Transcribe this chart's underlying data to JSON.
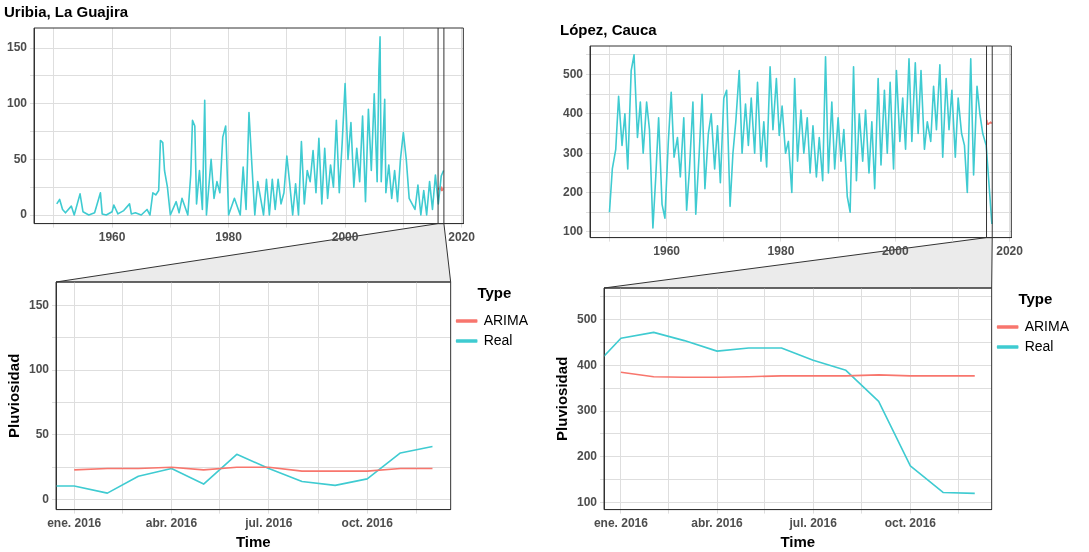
{
  "chart_data": [
    {
      "type": "line",
      "title": "Uribia, La Guajira",
      "xlim": [
        1946.6,
        2020.3
      ],
      "ylim": [
        -7.7,
        168
      ],
      "xticks": [
        {
          "value": 1950,
          "label": null
        },
        1960,
        {
          "value": 1970,
          "label": null
        },
        1980,
        {
          "value": 1990,
          "label": null
        },
        2000,
        {
          "value": 2010,
          "label": null
        },
        2020
      ],
      "yticks": [
        0,
        {
          "value": 25,
          "label": null
        },
        50,
        {
          "value": 75,
          "label": null
        },
        100,
        {
          "value": 125,
          "label": null
        },
        150
      ],
      "grid": true,
      "legend": false,
      "ref_lines": [
        {
          "axis": "x",
          "value": 2015.96,
          "color": "#333333"
        },
        {
          "axis": "x",
          "value": 2016.96,
          "color": "#333333"
        }
      ],
      "series": [
        {
          "color": "#3fcbd1",
          "x": [
            1950.5,
            1951,
            1951.5,
            1952,
            1953,
            1953.5,
            1954.5,
            1955,
            1956,
            1957,
            1958,
            1958.3,
            1959,
            1960,
            1960.3,
            1961,
            1962,
            1963,
            1963.3,
            1964,
            1965,
            1966,
            1966.5,
            1967,
            1967.5,
            1968,
            1968.3,
            1968.7,
            1969,
            1969.5,
            1970,
            1971,
            1971.5,
            1972,
            1973,
            1973.5,
            1973.8,
            1974.2,
            1974.5,
            1975,
            1975.5,
            1975.9,
            1976.2,
            1977,
            1977.5,
            1978,
            1978.5,
            1979,
            1979.5,
            1980,
            1981,
            1982,
            1982.5,
            1983,
            1983.5,
            1984,
            1984.5,
            1985,
            1986,
            1986.5,
            1987,
            1987.5,
            1988,
            1988.5,
            1989,
            1989.5,
            1990,
            1990.5,
            1991,
            1991.5,
            1992,
            1992.5,
            1993,
            1993.5,
            1994,
            1994.5,
            1995,
            1995.5,
            1996,
            1996.5,
            1997,
            1997.5,
            1998,
            1998.5,
            1999,
            1999.5,
            2000,
            2000.5,
            2001,
            2001.5,
            2002,
            2002.5,
            2003,
            2003.5,
            2004,
            2004.5,
            2005,
            2005.5,
            2005.8,
            2006,
            2006.2,
            2006.8,
            2007,
            2007.5,
            2008,
            2008.5,
            2009,
            2009.5,
            2010,
            2010.5,
            2011,
            2012,
            2012.5,
            2013,
            2013.5,
            2014,
            2014.5,
            2015,
            2015.5,
            2016,
            2016.5,
            2016.9
          ],
          "values": [
            10,
            14,
            5,
            2,
            8,
            0,
            19,
            3,
            0,
            2,
            20,
            1,
            0,
            3,
            9,
            1,
            4,
            10,
            1,
            2,
            0,
            5,
            0,
            20,
            18,
            22,
            67,
            65,
            40,
            25,
            0,
            12,
            2,
            15,
            0,
            36,
            85,
            80,
            10,
            40,
            5,
            103,
            0,
            50,
            15,
            30,
            20,
            70,
            80,
            0,
            15,
            0,
            43,
            5,
            92,
            45,
            0,
            30,
            0,
            32,
            0,
            32,
            5,
            32,
            10,
            20,
            53,
            28,
            0,
            28,
            0,
            66,
            10,
            40,
            30,
            58,
            20,
            69,
            10,
            60,
            15,
            45,
            25,
            85,
            20,
            65,
            118,
            50,
            83,
            25,
            60,
            30,
            89,
            12,
            95,
            40,
            109,
            30,
            130,
            160,
            30,
            104,
            20,
            45,
            15,
            40,
            12,
            50,
            74,
            50,
            15,
            5,
            27,
            0,
            22,
            0,
            30,
            5,
            36,
            10,
            35,
            40
          ]
        },
        {
          "color": "#f8766d",
          "x": [
            2016,
            2016.08,
            2016.17,
            2016.25,
            2016.33,
            2016.42,
            2016.5,
            2016.58,
            2016.67,
            2016.75,
            2016.83,
            2016.92
          ],
          "values": [
            23,
            24,
            24,
            25,
            23,
            25,
            25,
            22,
            22,
            22,
            24,
            24
          ]
        }
      ]
    },
    {
      "type": "line",
      "title": "López, Cauca",
      "xlim": [
        1946.6,
        2020.3
      ],
      "ylim": [
        85.5,
        572.6
      ],
      "xticks": [
        {
          "value": 1950,
          "label": null
        },
        1960,
        {
          "value": 1970,
          "label": null
        },
        1980,
        {
          "value": 1990,
          "label": null
        },
        2000,
        {
          "value": 2010,
          "label": null
        },
        2020
      ],
      "yticks": [
        100,
        {
          "value": 150,
          "label": null
        },
        200,
        {
          "value": 250,
          "label": null
        },
        300,
        {
          "value": 350,
          "label": null
        },
        400,
        {
          "value": 450,
          "label": null
        },
        500,
        {
          "value": 550,
          "label": null
        }
      ],
      "grid": true,
      "legend": false,
      "ref_lines": [
        {
          "axis": "x",
          "value": 2015.96,
          "color": "#333333"
        },
        {
          "axis": "x",
          "value": 2016.96,
          "color": "#333333"
        }
      ],
      "series": [
        {
          "color": "#3fcbd1",
          "x": [
            1950,
            1950.5,
            1951.1,
            1951.6,
            1952.2,
            1952.7,
            1953.2,
            1953.8,
            1954.3,
            1954.9,
            1955.4,
            1955.9,
            1956.5,
            1957,
            1957.6,
            1958.1,
            1958.6,
            1959.2,
            1959.7,
            1960.3,
            1960.8,
            1961.3,
            1961.9,
            1962.4,
            1963,
            1963.5,
            1964,
            1964.6,
            1965.1,
            1965.7,
            1966.2,
            1966.7,
            1967.3,
            1967.8,
            1968.4,
            1968.9,
            1969.4,
            1970,
            1970.5,
            1971.1,
            1971.6,
            1972.1,
            1972.7,
            1973.2,
            1973.8,
            1974.3,
            1974.8,
            1975.4,
            1975.9,
            1976.5,
            1977,
            1977.5,
            1978.1,
            1978.6,
            1979.2,
            1979.7,
            1980.2,
            1980.8,
            1981.3,
            1981.9,
            1982.4,
            1982.9,
            1983.5,
            1984,
            1984.6,
            1985.1,
            1985.6,
            1986.2,
            1986.7,
            1987.3,
            1987.8,
            1988.3,
            1988.9,
            1989.4,
            1990,
            1990.5,
            1991,
            1991.6,
            1992.1,
            1992.7,
            1993.2,
            1993.7,
            1994.3,
            1994.8,
            1995.4,
            1995.9,
            1996.4,
            1997,
            1997.5,
            1998.1,
            1998.6,
            1999.1,
            1999.7,
            2000.2,
            2000.8,
            2001.3,
            2001.8,
            2002.4,
            2002.9,
            2003.5,
            2004,
            2004.5,
            2005.1,
            2005.6,
            2006.2,
            2006.7,
            2007.2,
            2007.8,
            2008.3,
            2008.9,
            2009.4,
            2009.9,
            2010.5,
            2011,
            2011.6,
            2012.1,
            2012.6,
            2013.2,
            2013.7,
            2014.3,
            2014.8,
            2015.3,
            2015.9,
            2016.9
          ],
          "values": [
            150,
            260,
            310,
            445,
            320,
            400,
            260,
            510,
            550,
            340,
            430,
            300,
            430,
            360,
            110,
            240,
            390,
            170,
            135,
            330,
            455,
            290,
            340,
            240,
            390,
            155,
            260,
            430,
            145,
            300,
            450,
            210,
            350,
            400,
            260,
            370,
            225,
            440,
            460,
            165,
            300,
            380,
            510,
            300,
            425,
            320,
            440,
            300,
            480,
            280,
            380,
            265,
            520,
            360,
            490,
            345,
            420,
            300,
            330,
            200,
            490,
            280,
            410,
            300,
            390,
            250,
            370,
            240,
            340,
            230,
            545,
            250,
            430,
            260,
            390,
            280,
            360,
            190,
            150,
            520,
            230,
            400,
            280,
            410,
            250,
            380,
            210,
            490,
            270,
            460,
            300,
            480,
            260,
            510,
            330,
            440,
            310,
            540,
            330,
            530,
            350,
            510,
            310,
            380,
            330,
            470,
            360,
            525,
            290,
            490,
            360,
            460,
            290,
            440,
            350,
            320,
            200,
            540,
            245,
            470,
            400,
            350,
            320,
            120
          ]
        },
        {
          "color": "#f8766d",
          "x": [
            2016,
            2016.08,
            2016.17,
            2016.25,
            2016.33,
            2016.42,
            2016.5,
            2016.58,
            2016.67,
            2016.75,
            2016.83,
            2016.92
          ],
          "values": [
            385,
            375,
            374,
            374,
            375,
            377,
            377,
            377,
            379,
            377,
            377,
            377
          ]
        }
      ]
    },
    {
      "type": "line",
      "xlabel": "Time",
      "ylabel": "Pluviosidad",
      "legend_title": "Type",
      "legend": "right",
      "xlim": [
        "2015-12-15",
        "2016-12-18"
      ],
      "ylim": [
        -7.7,
        168
      ],
      "xticks": [
        {
          "value": "2016-01-01",
          "label": "ene. 2016"
        },
        {
          "value": "2016-02-15",
          "label": null
        },
        {
          "value": "2016-04-01",
          "label": "abr. 2016"
        },
        {
          "value": "2016-05-16",
          "label": null
        },
        {
          "value": "2016-07-01",
          "label": "jul. 2016"
        },
        {
          "value": "2016-08-16",
          "label": null
        },
        {
          "value": "2016-10-01",
          "label": "oct. 2016"
        },
        {
          "value": "2016-11-16",
          "label": null
        }
      ],
      "yticks": [
        0,
        {
          "value": 25,
          "label": null
        },
        50,
        {
          "value": 75,
          "label": null
        },
        100,
        {
          "value": 125,
          "label": null
        },
        150
      ],
      "grid": true,
      "series": [
        {
          "name": "ARIMA",
          "color": "#f8766d",
          "x": [
            "2016-01-01",
            "2016-02-01",
            "2016-03-01",
            "2016-04-01",
            "2016-05-01",
            "2016-06-01",
            "2016-07-01",
            "2016-08-01",
            "2016-09-01",
            "2016-10-01",
            "2016-11-01",
            "2016-12-01"
          ],
          "values": [
            23,
            24,
            24,
            25,
            23,
            25,
            25,
            22,
            22,
            22,
            24,
            24
          ]
        },
        {
          "name": "Real",
          "color": "#3fcbd1",
          "x": [
            "2015-12-15",
            "2016-01-01",
            "2016-02-01",
            "2016-03-01",
            "2016-04-01",
            "2016-05-01",
            "2016-06-01",
            "2016-07-01",
            "2016-08-01",
            "2016-09-01",
            "2016-10-01",
            "2016-11-01",
            "2016-12-01"
          ],
          "values": [
            10.5,
            10.5,
            5,
            18,
            24,
            12,
            35,
            24,
            14,
            11,
            16,
            36,
            41
          ]
        }
      ]
    },
    {
      "type": "line",
      "xlabel": "Time",
      "ylabel": "Pluviosidad",
      "legend_title": "Type",
      "legend": "right",
      "xlim": [
        "2015-12-16",
        "2016-12-17"
      ],
      "ylim": [
        84.6,
        569
      ],
      "xticks": [
        {
          "value": "2016-01-01",
          "label": "ene. 2016"
        },
        {
          "value": "2016-02-15",
          "label": null
        },
        {
          "value": "2016-04-01",
          "label": "abr. 2016"
        },
        {
          "value": "2016-05-16",
          "label": null
        },
        {
          "value": "2016-07-01",
          "label": "jul. 2016"
        },
        {
          "value": "2016-08-16",
          "label": null
        },
        {
          "value": "2016-10-01",
          "label": "oct. 2016"
        },
        {
          "value": "2016-11-16",
          "label": null
        }
      ],
      "yticks": [
        100,
        {
          "value": 150,
          "label": null
        },
        200,
        {
          "value": 250,
          "label": null
        },
        300,
        {
          "value": 350,
          "label": null
        },
        400,
        {
          "value": 450,
          "label": null
        },
        500,
        {
          "value": 550,
          "label": null
        }
      ],
      "grid": true,
      "series": [
        {
          "name": "ARIMA",
          "color": "#f8766d",
          "x": [
            "2016-01-01",
            "2016-02-01",
            "2016-03-01",
            "2016-04-01",
            "2016-05-01",
            "2016-06-01",
            "2016-07-01",
            "2016-08-01",
            "2016-09-01",
            "2016-10-01",
            "2016-11-01",
            "2016-12-01"
          ],
          "values": [
            385,
            375,
            374,
            374,
            375,
            377,
            377,
            377,
            379,
            377,
            377,
            377
          ]
        },
        {
          "name": "Real",
          "color": "#3fcbd1",
          "x": [
            "2015-12-16",
            "2016-01-01",
            "2016-02-01",
            "2016-03-01",
            "2016-04-01",
            "2016-05-01",
            "2016-06-01",
            "2016-07-01",
            "2016-08-01",
            "2016-09-01",
            "2016-10-01",
            "2016-11-01",
            "2016-12-01"
          ],
          "values": [
            420,
            459,
            472,
            454,
            431,
            438,
            438,
            411,
            389,
            321,
            180,
            122,
            120
          ]
        }
      ]
    }
  ]
}
